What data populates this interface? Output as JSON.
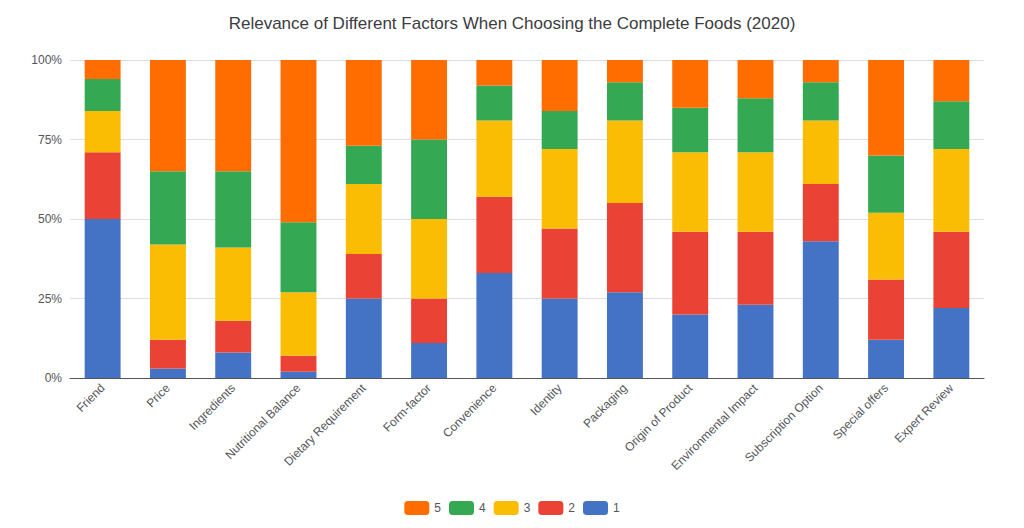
{
  "chart_data": {
    "type": "bar",
    "title": "Relevance of Different Factors When Choosing the Complete Foods (2020)",
    "categories": [
      "Friend",
      "Price",
      "Ingredients",
      "Nutritional Balance",
      "Dietary Requirement",
      "Form-factor",
      "Convenience",
      "Identity",
      "Packaging",
      "Origin of Product",
      "Environmental Impact",
      "Subscription Option",
      "Special offers",
      "Expert Review"
    ],
    "series": [
      {
        "name": "1",
        "color": "#4472C4",
        "values": [
          50,
          3,
          8,
          2,
          25,
          11,
          33,
          25,
          27,
          20,
          23,
          43,
          12,
          22
        ]
      },
      {
        "name": "2",
        "color": "#EA4335",
        "values": [
          21,
          9,
          10,
          5,
          14,
          14,
          24,
          22,
          28,
          26,
          23,
          18,
          19,
          24
        ]
      },
      {
        "name": "3",
        "color": "#FBBC04",
        "values": [
          13,
          30,
          23,
          20,
          22,
          25,
          24,
          25,
          26,
          25,
          25,
          20,
          21,
          26
        ]
      },
      {
        "name": "4",
        "color": "#34A853",
        "values": [
          10,
          23,
          24,
          22,
          12,
          25,
          11,
          12,
          12,
          14,
          17,
          12,
          18,
          15
        ]
      },
      {
        "name": "5",
        "color": "#FF6D00",
        "values": [
          6,
          35,
          35,
          51,
          27,
          25,
          8,
          16,
          7,
          15,
          12,
          7,
          30,
          13
        ]
      }
    ],
    "stacked": true,
    "ylim": [
      0,
      100
    ],
    "yticks": [
      {
        "value": 0,
        "label": "0%"
      },
      {
        "value": 25,
        "label": "25%"
      },
      {
        "value": 50,
        "label": "50%"
      },
      {
        "value": 75,
        "label": "75%"
      },
      {
        "value": 100,
        "label": "100%"
      }
    ],
    "grid": true,
    "legend": "bottom"
  }
}
